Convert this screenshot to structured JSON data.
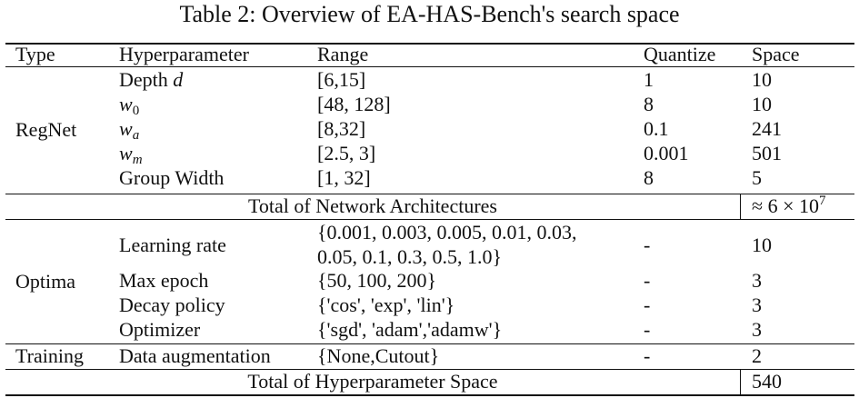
{
  "caption": "Table 2: Overview of EA-HAS-Bench's search space",
  "columns": [
    "Type",
    "Hyperparameter",
    "Range",
    "Quantize",
    "Space"
  ],
  "regnet": {
    "type": "RegNet",
    "rows": [
      {
        "param": "Depth",
        "param_var": "d",
        "range": "[6,15]",
        "quantize": "1",
        "space": "10"
      },
      {
        "param_var": "w",
        "param_sub": "0",
        "range": "[48, 128]",
        "quantize": "8",
        "space": "10"
      },
      {
        "param_var": "w",
        "param_sub": "a",
        "range": "[8,32]",
        "quantize": "0.1",
        "space": "241"
      },
      {
        "param_var": "w",
        "param_sub": "m",
        "range": "[2.5, 3]",
        "quantize": "0.001",
        "space": "501"
      },
      {
        "param": "Group Width",
        "range": "[1, 32]",
        "quantize": "8",
        "space": "5"
      }
    ],
    "total_label": "Total of Network Architectures",
    "total_value_prefix": "≈ 6 × 10",
    "total_value_exp": "7"
  },
  "optima": {
    "type": "Optima",
    "rows": [
      {
        "param": "Learning rate",
        "range_line1": "{0.001, 0.003, 0.005, 0.01, 0.03,",
        "range_line2": "0.05, 0.1, 0.3, 0.5, 1.0}",
        "quantize": "-",
        "space": "10"
      },
      {
        "param": "Max epoch",
        "range": "{50, 100, 200}",
        "quantize": "-",
        "space": "3"
      },
      {
        "param": "Decay policy",
        "range": "{'cos', 'exp', 'lin'}",
        "quantize": "-",
        "space": "3"
      },
      {
        "param": "Optimizer",
        "range": "{'sgd', 'adam','adamw'}",
        "quantize": "-",
        "space": "3"
      }
    ]
  },
  "training": {
    "type": "Training",
    "rows": [
      {
        "param": "Data augmentation",
        "range": "{None,Cutout}",
        "quantize": "-",
        "space": "2"
      }
    ],
    "total_label": "Total of Hyperparameter Space",
    "total_value": "540"
  }
}
